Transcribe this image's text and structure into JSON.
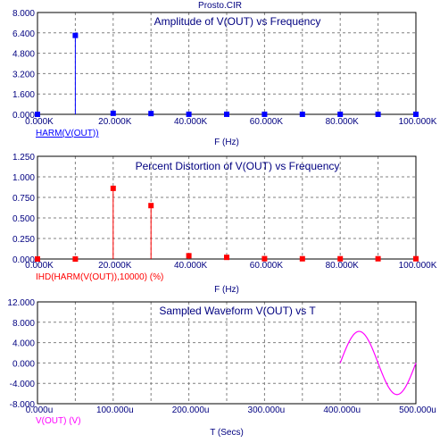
{
  "window": {
    "file_title": "Prosto.CIR"
  },
  "colors": {
    "background": "#ffffff",
    "axis_text": "#000080",
    "grid": "#808080",
    "frame": "#000000",
    "plot1": "#0000ff",
    "plot2": "#ff0000",
    "plot3": "#ff00ff",
    "expr1_label": "#0000ff",
    "expr2_label": "#ff0000",
    "expr3_label": "#ff00ff"
  },
  "chart_data": [
    {
      "type": "bar",
      "title": "Amplitude of V(OUT) vs Frequency",
      "xlabel": "F (Hz)",
      "ylabel": "",
      "expression_label": "HARM(V(OUT))",
      "xlim": [
        0,
        100000
      ],
      "ylim": [
        0,
        8
      ],
      "x_ticks": [
        "0.000K",
        "20.000K",
        "40.000K",
        "60.000K",
        "80.000K",
        "100.000K"
      ],
      "y_ticks": [
        "8.000",
        "6.400",
        "4.800",
        "3.200",
        "1.600",
        "0.000"
      ],
      "grid": true,
      "x": [
        0,
        10000,
        20000,
        30000,
        40000,
        50000,
        60000,
        70000,
        80000,
        90000,
        100000
      ],
      "values": [
        0.0,
        6.2,
        0.08,
        0.06,
        0.005,
        0.004,
        0.002,
        0.002,
        0.002,
        0.002,
        0.002
      ]
    },
    {
      "type": "bar",
      "title": "Percent Distortion of V(OUT) vs Frequency",
      "xlabel": "F (Hz)",
      "ylabel": "",
      "expression_label": "IHD(HARM(V(OUT)),10000) (%)",
      "xlim": [
        0,
        100000
      ],
      "ylim": [
        0,
        1.25
      ],
      "x_ticks": [
        "0.000K",
        "20.000K",
        "40.000K",
        "60.000K",
        "80.000K",
        "100.000K"
      ],
      "y_ticks": [
        "1.250",
        "1.000",
        "0.750",
        "0.500",
        "0.250",
        "0.000"
      ],
      "grid": true,
      "x": [
        0,
        10000,
        20000,
        30000,
        40000,
        50000,
        60000,
        70000,
        80000,
        90000,
        100000
      ],
      "values": [
        0.0,
        0.0,
        0.86,
        0.65,
        0.04,
        0.02,
        0.004,
        0.003,
        0.003,
        0.003,
        0.003
      ]
    },
    {
      "type": "line",
      "title": "Sampled Waveform  V(OUT) vs T",
      "xlabel": "T (Secs)",
      "ylabel": "",
      "expression_label": "V(OUT) (V)",
      "xlim": [
        0,
        0.0005
      ],
      "ylim": [
        -8,
        12
      ],
      "x_ticks": [
        "0.000u",
        "100.000u",
        "200.000u",
        "300.000u",
        "400.000u",
        "500.000u"
      ],
      "y_ticks": [
        "12.000",
        "8.000",
        "4.000",
        "0.000",
        "-4.000",
        "-8.000"
      ],
      "grid": true,
      "series": [
        {
          "waveform": "sine",
          "amplitude": 6.2,
          "frequency_hz": 10000,
          "t_start": 0.0004,
          "t_end": 0.0005
        }
      ]
    }
  ]
}
